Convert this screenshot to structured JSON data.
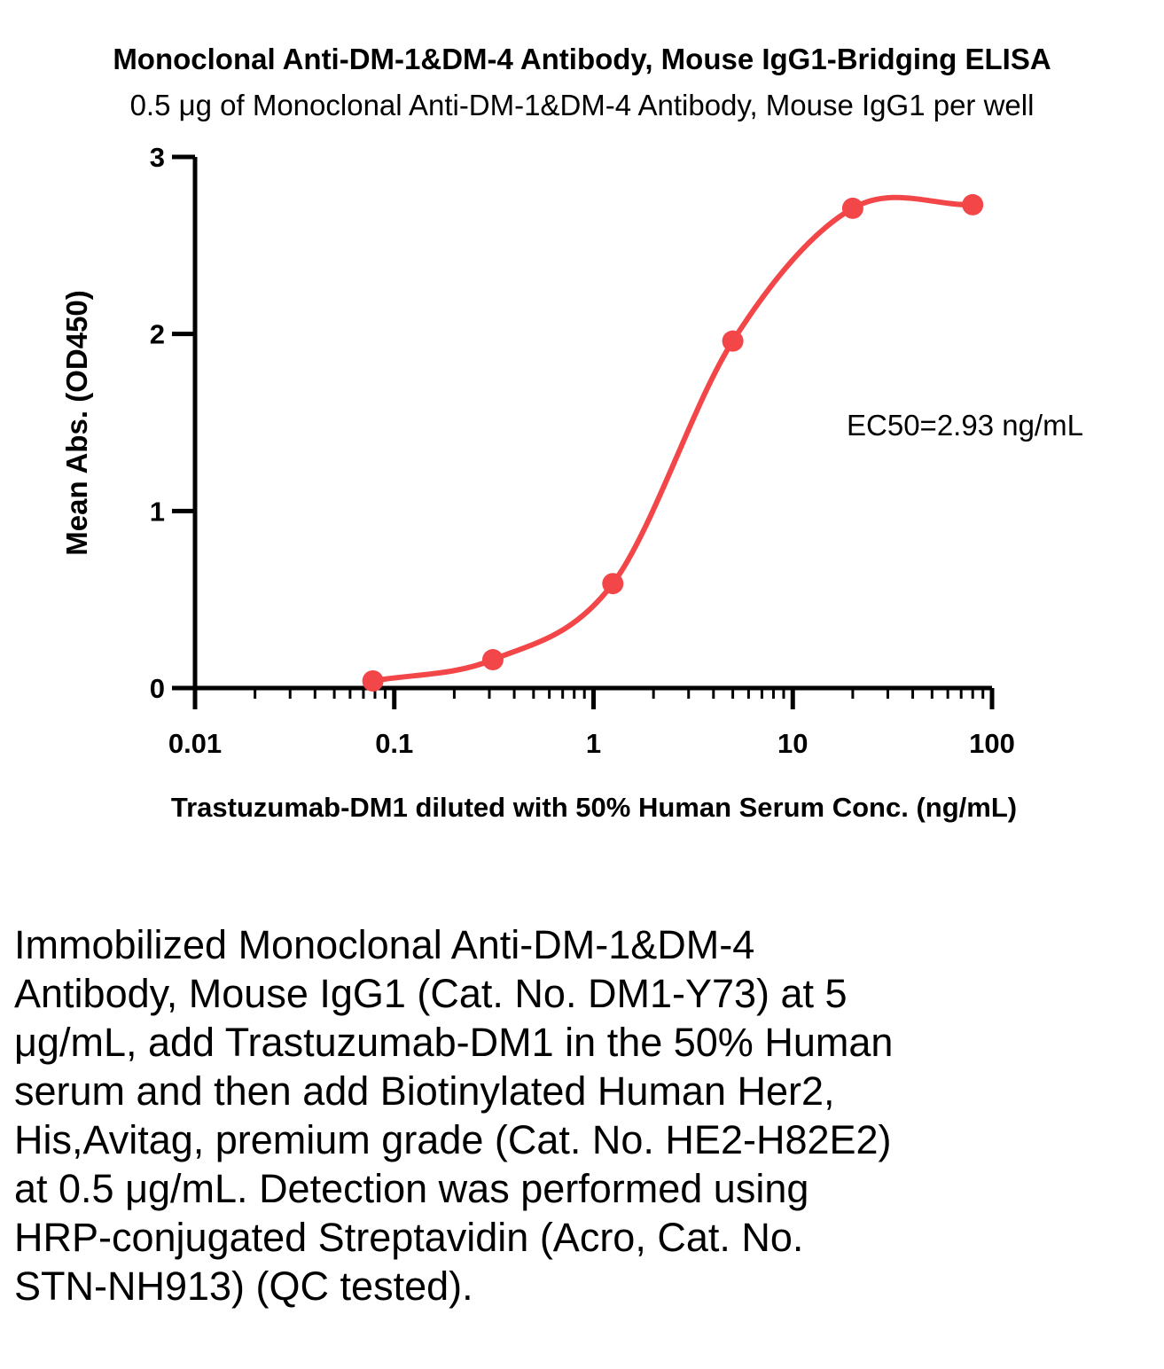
{
  "chart_data": {
    "type": "line",
    "title": "Monoclonal Anti-DM-1&DM-4 Antibody, Mouse IgG1-Bridging ELISA",
    "subtitle": "0.5 μg of Monoclonal Anti-DM-1&DM-4 Antibody, Mouse IgG1 per well",
    "xlabel": "Trastuzumab-DM1 diluted with 50% Human Serum Conc. (ng/mL)",
    "ylabel": "Mean Abs. (OD450)",
    "xscale": "log",
    "xlim": [
      0.01,
      100
    ],
    "ylim": [
      0,
      3
    ],
    "xticks": [
      0.01,
      0.1,
      1,
      10,
      100
    ],
    "xtick_labels": [
      "0.01",
      "0.1",
      "1",
      "10",
      "100"
    ],
    "yticks": [
      0,
      1,
      2,
      3
    ],
    "ytick_labels": [
      "0",
      "1",
      "2",
      "3"
    ],
    "grid": false,
    "color": "#f24649",
    "series": [
      {
        "x": [
          0.0781,
          0.3125,
          1.25,
          5,
          20,
          80
        ],
        "y": [
          0.04,
          0.16,
          0.59,
          1.96,
          2.71,
          2.73
        ]
      }
    ],
    "annotation": "EC50=2.93 ng/mL"
  },
  "description": "Immobilized Monoclonal Anti-DM-1&DM-4 Antibody, Mouse IgG1 (Cat. No. DM1-Y73) at 5 μg/mL, add Trastuzumab-DM1 in the 50% Human serum and then add Biotinylated Human Her2, His,Avitag, premium grade (Cat. No. HE2-H82E2) at 0.5 μg/mL. Detection was performed using HRP-conjugated Streptavidin (Acro, Cat. No. STN-NH913) (QC tested)."
}
